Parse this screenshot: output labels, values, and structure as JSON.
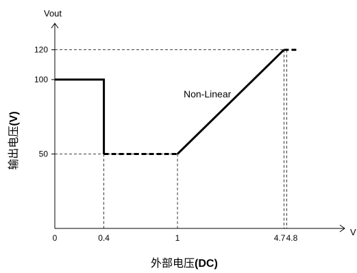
{
  "chart_data": {
    "type": "line",
    "xlabel_prefix": "外部电压",
    "xlabel_unit": "(DC)",
    "ylabel_prefix": "输出电压",
    "ylabel_unit": "(V)",
    "x_axis_name": "V",
    "y_axis_name": "Vout",
    "x_ticks": [
      {
        "value": 0,
        "label": "0"
      },
      {
        "value": 0.4,
        "label": "0.4"
      },
      {
        "value": 1,
        "label": "1"
      },
      {
        "value": 4.7,
        "label": "4.7"
      },
      {
        "value": 4.8,
        "label": "4.8"
      }
    ],
    "y_ticks": [
      {
        "value": 50,
        "label": "50"
      },
      {
        "value": 100,
        "label": "100"
      },
      {
        "value": 120,
        "label": "120"
      }
    ],
    "annotation": "Non-Linear",
    "segments": [
      {
        "style": "solid",
        "points": [
          [
            0,
            100
          ],
          [
            0.4,
            100
          ],
          [
            0.4,
            50
          ]
        ]
      },
      {
        "style": "dashed",
        "points": [
          [
            0.4,
            50
          ],
          [
            1,
            50
          ]
        ]
      },
      {
        "style": "solid",
        "points": [
          [
            1,
            50
          ],
          [
            4.7,
            120
          ]
        ]
      },
      {
        "style": "dashed",
        "points": [
          [
            4.7,
            120
          ],
          [
            5.2,
            120
          ]
        ]
      }
    ],
    "guides": [
      {
        "x": 0.4,
        "y": 50
      },
      {
        "x": 1,
        "y": 50
      },
      {
        "x": 4.7,
        "y": 120
      },
      {
        "x": 4.8,
        "y": 120
      }
    ]
  }
}
